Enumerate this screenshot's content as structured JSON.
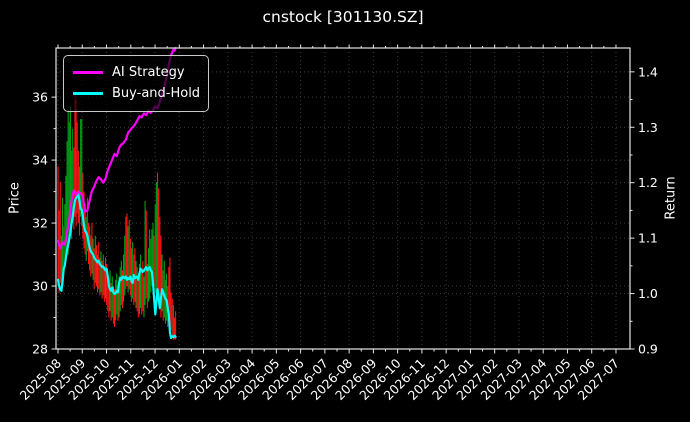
{
  "title": "cnstock [301130.SZ]",
  "legend": {
    "items": [
      {
        "label": "AI Strategy",
        "color": "#ff00ff"
      },
      {
        "label": "Buy-and-Hold",
        "color": "#00ffff"
      }
    ]
  },
  "axes": {
    "left_label": "Price",
    "right_label": "Return",
    "left_ticks": [
      36,
      34,
      32,
      30,
      28
    ],
    "left_minor_ticks": [
      35,
      33,
      31,
      29
    ],
    "right_ticks": [
      1.4,
      1.3,
      1.2,
      1.1,
      1.0,
      0.9
    ],
    "right_minor_ticks": [
      1.35,
      1.25,
      1.15,
      1.05,
      0.95
    ],
    "x_ticks": [
      "2025-08",
      "2025-09",
      "2025-10",
      "2025-11",
      "2025-12",
      "2026-01",
      "2026-02",
      "2026-03",
      "2026-04",
      "2026-05",
      "2026-06",
      "2026-07",
      "2026-08",
      "2026-09",
      "2026-10",
      "2026-11",
      "2026-12",
      "2027-01",
      "2027-02",
      "2027-03",
      "2027-04",
      "2027-05",
      "2027-06",
      "2027-07"
    ],
    "price_lim": [
      28,
      37.56
    ],
    "return_lim": [
      0.9,
      1.443
    ]
  },
  "colors": {
    "background": "#000000",
    "spine": "#e6e6e6",
    "grid": "#3c3c3c",
    "text": "#ffffff",
    "bar_up": "#00a018",
    "bar_down": "#ff1414",
    "ai_strategy": "#ff00ff",
    "buy_and_hold": "#00ffff"
  },
  "chart_data": {
    "type": "line",
    "title": "cnstock [301130.SZ]",
    "xlabel": "",
    "ylabel_left": "Price",
    "ylabel_right": "Return",
    "x_range_shown": [
      "2025-08",
      "2027-07"
    ],
    "data_span": {
      "start": "2025-08",
      "end": "2026-01",
      "trading_days": 105
    },
    "grid": true,
    "legend_position": "upper left",
    "series": [
      {
        "name": "AI Strategy",
        "axis": "return",
        "color": "#ff00ff",
        "values": [
          1.095,
          1.088,
          1.082,
          1.087,
          1.092,
          1.09,
          1.088,
          1.098,
          1.11,
          1.122,
          1.135,
          1.152,
          1.168,
          1.178,
          1.186,
          1.182,
          1.178,
          1.181,
          1.184,
          1.182,
          1.181,
          1.178,
          1.174,
          1.161,
          1.148,
          1.149,
          1.15,
          1.159,
          1.168,
          1.177,
          1.185,
          1.189,
          1.193,
          1.198,
          1.203,
          1.207,
          1.21,
          1.208,
          1.206,
          1.203,
          1.2,
          1.204,
          1.207,
          1.215,
          1.222,
          1.227,
          1.232,
          1.237,
          1.242,
          1.247,
          1.252,
          1.25,
          1.248,
          1.255,
          1.262,
          1.266,
          1.269,
          1.27,
          1.272,
          1.275,
          1.278,
          1.284,
          1.29,
          1.293,
          1.295,
          1.298,
          1.3,
          1.302,
          1.305,
          1.308,
          1.312,
          1.316,
          1.32,
          1.319,
          1.318,
          1.322,
          1.325,
          1.323,
          1.322,
          1.326,
          1.33,
          1.328,
          1.326,
          1.328,
          1.33,
          1.334,
          1.338,
          1.336,
          1.334,
          1.34,
          1.345,
          1.352,
          1.36,
          1.366,
          1.372,
          1.381,
          1.39,
          1.402,
          1.414,
          1.422,
          1.43,
          1.435,
          1.44,
          1.438,
          1.443
        ]
      },
      {
        "name": "Buy-and-Hold",
        "axis": "price",
        "color": "#00ffff",
        "values": [
          30.2,
          30.0,
          29.9,
          29.85,
          30.1,
          30.55,
          30.65,
          30.9,
          31.15,
          31.3,
          31.5,
          31.7,
          32.0,
          32.2,
          32.5,
          32.72,
          32.8,
          32.85,
          32.9,
          32.7,
          32.45,
          32.42,
          32.2,
          31.9,
          31.75,
          31.7,
          31.6,
          31.4,
          31.2,
          31.1,
          31.05,
          31.0,
          30.9,
          30.85,
          30.8,
          30.75,
          30.8,
          30.7,
          30.65,
          30.6,
          30.62,
          30.55,
          30.5,
          30.55,
          30.3,
          30.0,
          29.9,
          29.85,
          29.95,
          29.8,
          29.75,
          29.78,
          29.85,
          29.8,
          30.1,
          30.25,
          30.2,
          30.3,
          30.28,
          30.25,
          30.3,
          30.2,
          30.25,
          30.22,
          30.3,
          30.15,
          30.1,
          30.35,
          30.25,
          30.28,
          30.3,
          30.2,
          30.4,
          30.55,
          30.5,
          30.45,
          30.5,
          30.55,
          30.6,
          30.5,
          30.55,
          30.6,
          30.5,
          30.45,
          30.1,
          29.6,
          29.1,
          29.5,
          29.9,
          29.6,
          29.3,
          29.6,
          29.9,
          29.8,
          29.7,
          29.6,
          29.55,
          29.3,
          29.1,
          28.5,
          28.35,
          28.4,
          28.38,
          28.42,
          28.38
        ]
      }
    ],
    "daily_price_bars": [
      [
        30.0,
        33.8,
        "r"
      ],
      [
        29.8,
        32.4,
        "r"
      ],
      [
        30.1,
        33.3,
        "r"
      ],
      [
        29.9,
        31.6,
        "g"
      ],
      [
        30.2,
        32.8,
        "g"
      ],
      [
        30.4,
        31.9,
        "r"
      ],
      [
        30.6,
        32.6,
        "g"
      ],
      [
        30.9,
        33.5,
        "g"
      ],
      [
        31.2,
        34.6,
        "g"
      ],
      [
        31.0,
        35.6,
        "g"
      ],
      [
        31.4,
        35.2,
        "g"
      ],
      [
        31.8,
        35.7,
        "g"
      ],
      [
        31.5,
        34.3,
        "r"
      ],
      [
        32.0,
        35.0,
        "g"
      ],
      [
        31.8,
        34.4,
        "r"
      ],
      [
        32.2,
        36.1,
        "r"
      ],
      [
        31.9,
        35.9,
        "r"
      ],
      [
        32.3,
        35.2,
        "r"
      ],
      [
        32.0,
        34.3,
        "r"
      ],
      [
        31.6,
        33.8,
        "r"
      ],
      [
        32.2,
        35.3,
        "g"
      ],
      [
        31.9,
        35.3,
        "g"
      ],
      [
        31.5,
        33.6,
        "r"
      ],
      [
        31.2,
        33.0,
        "r"
      ],
      [
        31.0,
        32.6,
        "r"
      ],
      [
        30.8,
        32.2,
        "g"
      ],
      [
        31.1,
        32.8,
        "r"
      ],
      [
        30.7,
        32.0,
        "r"
      ],
      [
        30.5,
        31.9,
        "g"
      ],
      [
        30.3,
        31.6,
        "r"
      ],
      [
        30.4,
        32.0,
        "r"
      ],
      [
        30.2,
        31.5,
        "g"
      ],
      [
        29.9,
        31.2,
        "r"
      ],
      [
        30.1,
        31.6,
        "g"
      ],
      [
        30.0,
        31.3,
        "r"
      ],
      [
        29.8,
        31.0,
        "g"
      ],
      [
        29.9,
        31.4,
        "r"
      ],
      [
        29.7,
        30.9,
        "r"
      ],
      [
        29.8,
        31.1,
        "g"
      ],
      [
        29.6,
        30.8,
        "r"
      ],
      [
        29.7,
        31.0,
        "g"
      ],
      [
        29.5,
        30.6,
        "r"
      ],
      [
        29.6,
        30.9,
        "g"
      ],
      [
        29.4,
        30.7,
        "r"
      ],
      [
        29.2,
        30.4,
        "r"
      ],
      [
        29.0,
        30.2,
        "r"
      ],
      [
        29.2,
        30.5,
        "g"
      ],
      [
        28.9,
        30.1,
        "r"
      ],
      [
        29.0,
        30.3,
        "g"
      ],
      [
        28.8,
        30.0,
        "r"
      ],
      [
        28.7,
        29.9,
        "r"
      ],
      [
        28.9,
        30.2,
        "g"
      ],
      [
        29.1,
        30.4,
        "g"
      ],
      [
        28.9,
        30.0,
        "r"
      ],
      [
        29.0,
        30.3,
        "g"
      ],
      [
        29.2,
        30.6,
        "g"
      ],
      [
        29.4,
        30.8,
        "g"
      ],
      [
        29.3,
        30.5,
        "r"
      ],
      [
        29.5,
        31.0,
        "g"
      ],
      [
        29.7,
        31.6,
        "g"
      ],
      [
        29.9,
        32.2,
        "r"
      ],
      [
        30.0,
        32.3,
        "r"
      ],
      [
        29.8,
        31.9,
        "g"
      ],
      [
        29.9,
        32.1,
        "r"
      ],
      [
        29.7,
        31.5,
        "r"
      ],
      [
        29.5,
        31.2,
        "r"
      ],
      [
        29.6,
        31.4,
        "g"
      ],
      [
        29.4,
        31.0,
        "r"
      ],
      [
        29.5,
        31.2,
        "r"
      ],
      [
        29.3,
        30.8,
        "g"
      ],
      [
        29.2,
        30.6,
        "r"
      ],
      [
        29.0,
        30.4,
        "r"
      ],
      [
        29.1,
        30.7,
        "g"
      ],
      [
        29.3,
        31.0,
        "g"
      ],
      [
        29.1,
        30.5,
        "r"
      ],
      [
        29.2,
        30.8,
        "r"
      ],
      [
        29.0,
        30.3,
        "g"
      ],
      [
        29.4,
        32.7,
        "g"
      ],
      [
        29.6,
        32.4,
        "r"
      ],
      [
        29.3,
        30.7,
        "r"
      ],
      [
        29.5,
        31.2,
        "g"
      ],
      [
        29.6,
        31.8,
        "g"
      ],
      [
        29.8,
        31.5,
        "g"
      ],
      [
        30.0,
        31.8,
        "g"
      ],
      [
        30.1,
        32.0,
        "g"
      ],
      [
        30.0,
        31.6,
        "r"
      ],
      [
        29.8,
        32.6,
        "g"
      ],
      [
        29.6,
        33.3,
        "g"
      ],
      [
        29.8,
        33.6,
        "r"
      ],
      [
        29.5,
        33.1,
        "r"
      ],
      [
        29.3,
        32.2,
        "r"
      ],
      [
        29.0,
        31.6,
        "r"
      ],
      [
        29.2,
        31.0,
        "g"
      ],
      [
        28.9,
        30.5,
        "r"
      ],
      [
        29.0,
        30.8,
        "g"
      ],
      [
        28.8,
        30.2,
        "r"
      ],
      [
        28.9,
        30.4,
        "g"
      ],
      [
        28.7,
        30.0,
        "r"
      ],
      [
        28.8,
        30.6,
        "r"
      ],
      [
        28.5,
        30.9,
        "r"
      ],
      [
        28.6,
        29.8,
        "r"
      ],
      [
        28.4,
        29.6,
        "r"
      ],
      [
        28.3,
        29.4,
        "g"
      ],
      [
        28.3,
        29.0,
        "r"
      ],
      [
        28.3,
        29.2,
        "r"
      ]
    ]
  }
}
